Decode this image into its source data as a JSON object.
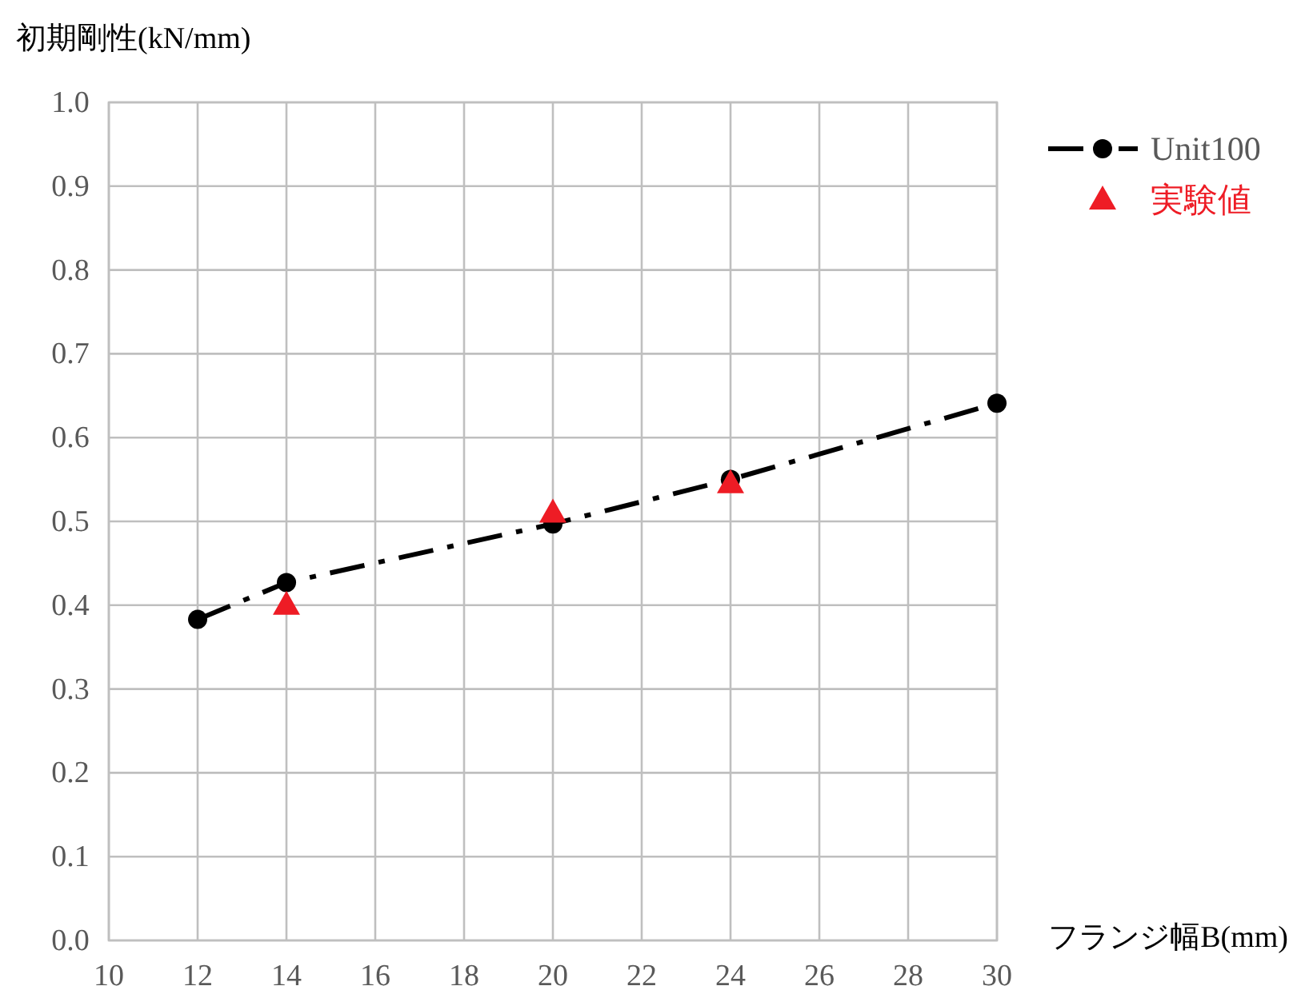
{
  "chart_data": {
    "type": "line",
    "xlabel": "フランジ幅B(mm)",
    "ylabel": "初期剛性(kN/mm)",
    "xlim": [
      10,
      30
    ],
    "xticks": [
      10,
      12,
      14,
      16,
      18,
      20,
      22,
      24,
      26,
      28,
      30
    ],
    "ylim": [
      0,
      1
    ],
    "yticks": [
      {
        "value": 0,
        "label": "0.0"
      },
      0.1,
      0.2,
      0.3,
      0.4,
      0.5,
      0.6,
      0.7,
      0.8,
      0.9,
      {
        "value": 1,
        "label": "1.0"
      }
    ],
    "grid": true,
    "legend": "top right",
    "series": [
      {
        "name": "Unit100",
        "color": "#000000",
        "marker": "circle",
        "line_style": "dashed",
        "x": [
          12,
          14,
          20,
          24,
          30
        ],
        "values": [
          0.383,
          0.427,
          0.497,
          0.55,
          0.641
        ]
      },
      {
        "name": "実験値",
        "type": "scatter",
        "color": "#ee1c25",
        "marker": "triangle",
        "x": [
          14,
          20,
          24
        ],
        "values": [
          0.4,
          0.51,
          0.545
        ]
      }
    ]
  }
}
